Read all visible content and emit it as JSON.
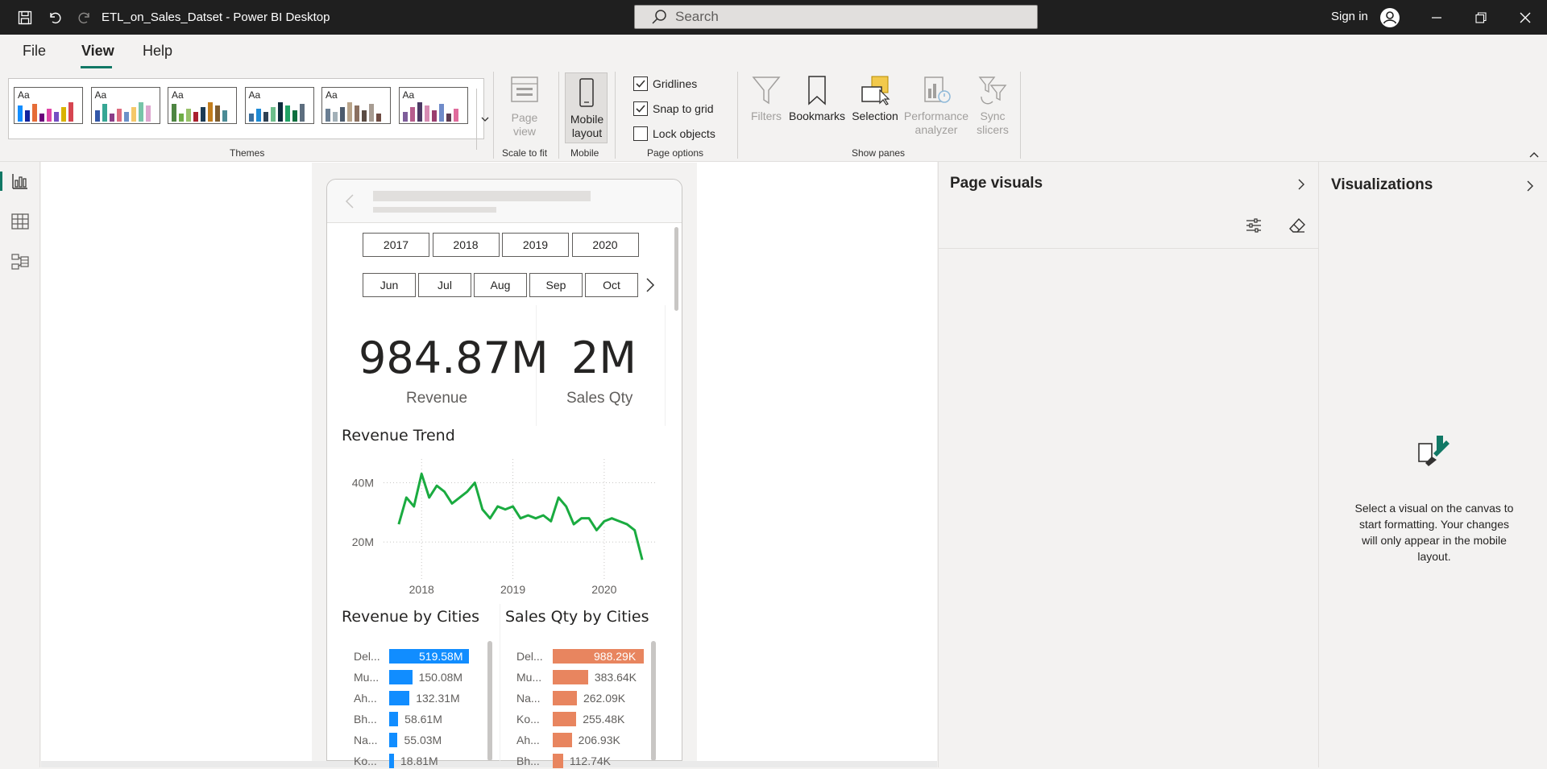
{
  "window": {
    "title": "ETL_on_Sales_Datset - Power BI Desktop",
    "search_placeholder": "Search",
    "sign_in": "Sign in"
  },
  "menu": {
    "file": "File",
    "view": "View",
    "help": "Help",
    "active": "View"
  },
  "ribbon": {
    "themes_label": "Themes",
    "themes": [
      {
        "colors": [
          "#118DFF",
          "#12239E",
          "#E66C37",
          "#6B007B",
          "#E044A7",
          "#744EC2",
          "#D9B300",
          "#D64550"
        ]
      },
      {
        "colors": [
          "#3257A8",
          "#37A794",
          "#8B3D88",
          "#DD6B7F",
          "#6B91C9",
          "#F5C869",
          "#77C4A8",
          "#DEA6CF"
        ]
      },
      {
        "colors": [
          "#4E8542",
          "#6FAD47",
          "#98C16A",
          "#A9202E",
          "#1C3B54",
          "#C27D1D",
          "#7F5C2F",
          "#4A8B95"
        ]
      },
      {
        "colors": [
          "#3A6F9E",
          "#1D8AD6",
          "#2F4254",
          "#6DBE8B",
          "#0E2C3D",
          "#21A366",
          "#0B6F3E",
          "#5D6E7F"
        ]
      },
      {
        "colors": [
          "#6A7E92",
          "#A2B0B8",
          "#4C5B6D",
          "#B9A48A",
          "#8B7060",
          "#5B4B43",
          "#A79C92",
          "#6E4B42"
        ]
      },
      {
        "colors": [
          "#7E5D9A",
          "#B75D8D",
          "#4C3A64",
          "#D68CB3",
          "#9A3E6F",
          "#6F8BC9",
          "#5D3A50",
          "#E06B9C"
        ]
      }
    ],
    "scale_to_fit": {
      "label": "Page view",
      "group": "Scale to fit"
    },
    "mobile": {
      "label": "Mobile layout",
      "group": "Mobile"
    },
    "page_options": {
      "group": "Page options",
      "gridlines": {
        "label": "Gridlines",
        "checked": true
      },
      "snap_to_grid": {
        "label": "Snap to grid",
        "checked": true
      },
      "lock_objects": {
        "label": "Lock objects",
        "checked": false
      }
    },
    "show_panes": {
      "group": "Show panes",
      "filters": "Filters",
      "bookmarks": "Bookmarks",
      "selection": "Selection",
      "performance_analyzer": "Performance analyzer",
      "sync_slicers": "Sync slicers"
    }
  },
  "mobile_canvas": {
    "years": [
      "2017",
      "2018",
      "2019",
      "2020"
    ],
    "months": [
      "Jun",
      "Jul",
      "Aug",
      "Sep",
      "Oct"
    ],
    "kpis": [
      {
        "value": "984.87M",
        "label": "Revenue"
      },
      {
        "value": "2M",
        "label": "Sales Qty"
      }
    ],
    "revenue_trend": {
      "title": "Revenue Trend",
      "y_ticks": [
        "40M",
        "20M"
      ],
      "x_ticks": [
        "2018",
        "2019",
        "2020"
      ]
    },
    "revenue_by_cities": {
      "title": "Revenue by Cities",
      "rows": [
        {
          "city": "Del...",
          "value": "519.58M",
          "num": 519.58
        },
        {
          "city": "Mu...",
          "value": "150.08M",
          "num": 150.08
        },
        {
          "city": "Ah...",
          "value": "132.31M",
          "num": 132.31
        },
        {
          "city": "Bh...",
          "value": "58.61M",
          "num": 58.61
        },
        {
          "city": "Na...",
          "value": "55.03M",
          "num": 55.03
        },
        {
          "city": "Ko...",
          "value": "18.81M",
          "num": 18.81
        }
      ],
      "color": "#118DFF"
    },
    "sales_qty_by_cities": {
      "title": "Sales Qty by Cities",
      "rows": [
        {
          "city": "Del...",
          "value": "988.29K",
          "num": 988.29
        },
        {
          "city": "Mu...",
          "value": "383.64K",
          "num": 383.64
        },
        {
          "city": "Na...",
          "value": "262.09K",
          "num": 262.09
        },
        {
          "city": "Ko...",
          "value": "255.48K",
          "num": 255.48
        },
        {
          "city": "Ah...",
          "value": "206.93K",
          "num": 206.93
        },
        {
          "city": "Bh...",
          "value": "112.74K",
          "num": 112.74
        }
      ],
      "color": "#E8855F"
    }
  },
  "chart_data": {
    "type": "line",
    "title": "Revenue Trend",
    "x_ticks": [
      "2018",
      "2019",
      "2020"
    ],
    "y_ticks": [
      "20M",
      "40M"
    ],
    "ylim": [
      10,
      48
    ],
    "grid": true,
    "series": [
      {
        "color": "#1AAB40",
        "x": [
          "2017-10",
          "2017-11",
          "2017-12",
          "2018-01",
          "2018-02",
          "2018-03",
          "2018-04",
          "2018-05",
          "2018-06",
          "2018-07",
          "2018-08",
          "2018-09",
          "2018-10",
          "2018-11",
          "2018-12",
          "2019-01",
          "2019-02",
          "2019-03",
          "2019-04",
          "2019-05",
          "2019-06",
          "2019-07",
          "2019-08",
          "2019-09",
          "2019-10",
          "2019-11",
          "2019-12",
          "2020-01",
          "2020-02",
          "2020-03",
          "2020-04",
          "2020-05",
          "2020-06"
        ],
        "values": [
          26,
          35,
          32,
          43,
          35,
          39,
          37,
          33,
          35,
          37,
          40,
          31,
          28,
          32,
          31,
          32,
          28,
          29,
          28,
          29,
          27,
          35,
          32,
          26,
          28,
          28,
          24,
          27,
          28,
          27,
          26,
          24,
          14
        ]
      }
    ]
  },
  "page_visuals": {
    "title": "Page visuals"
  },
  "visualizations": {
    "title": "Visualizations",
    "message": "Select a visual on the canvas to start formatting. Your changes will only appear in the mobile layout."
  }
}
